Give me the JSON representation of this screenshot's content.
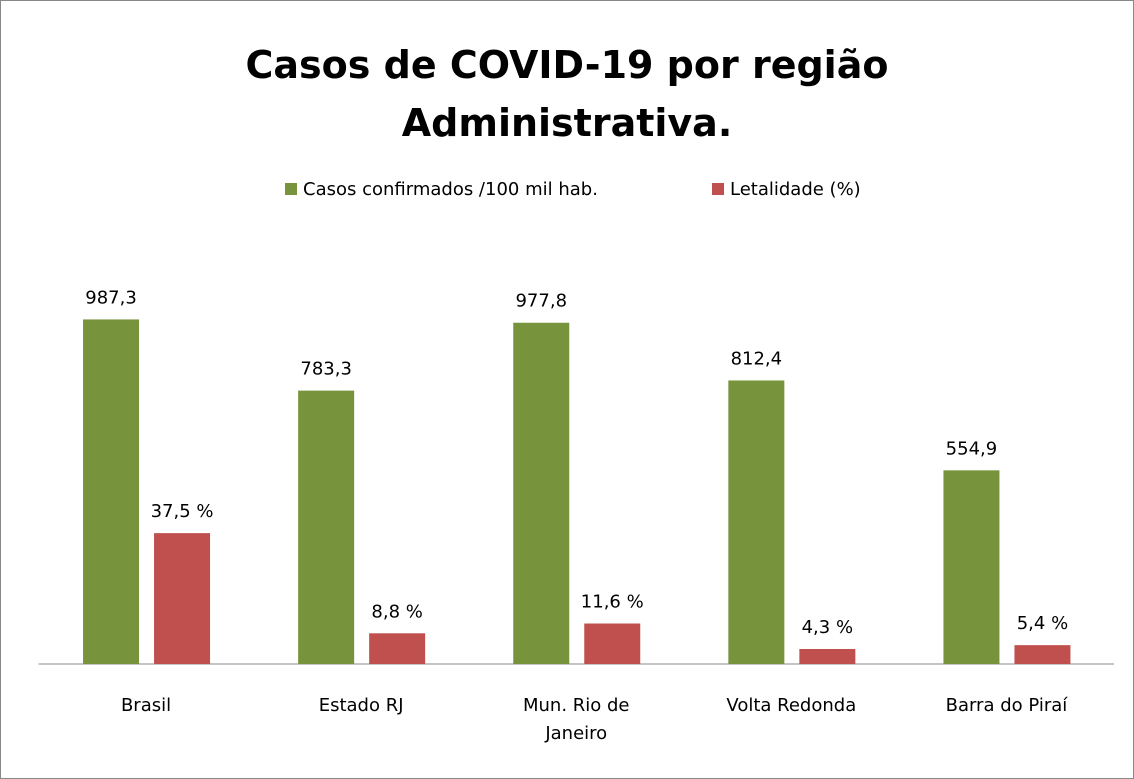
{
  "chart_data": {
    "type": "bar",
    "title": "Casos de COVID-19 por região Administrativa.",
    "categories": [
      "Brasil",
      "Estado RJ",
      "Mun. Rio de Janeiro",
      "Volta Redonda",
      "Barra do Piraí"
    ],
    "series": [
      {
        "name": "Casos confirmados /100 mil hab.",
        "color": "#77933c",
        "values": [
          987.3,
          783.3,
          977.8,
          812.4,
          554.9
        ],
        "value_labels": [
          "987,3",
          "783,3",
          "977,8",
          "812,4",
          "554,9"
        ]
      },
      {
        "name": "Letalidade (%)",
        "color": "#c0504d",
        "axis": "y2",
        "values": [
          37.5,
          8.8,
          11.6,
          4.3,
          5.4
        ],
        "value_labels": [
          "37,5 %",
          "8,8 %",
          "11,6 %",
          "4,3 %",
          "5,4 %"
        ]
      }
    ],
    "ylim": [
      0,
      1000
    ],
    "y2lim": [
      0,
      100
    ],
    "legend": "top"
  }
}
